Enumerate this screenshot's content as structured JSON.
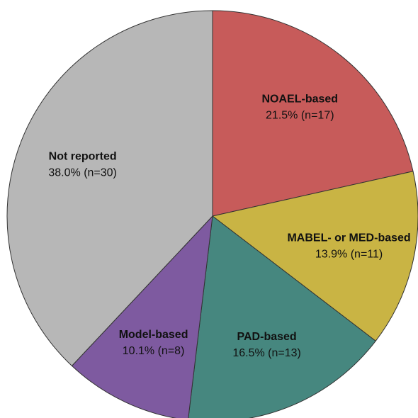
{
  "chart_data": {
    "type": "pie",
    "categories": [
      "NOAEL-based",
      "MABEL- or MED-based",
      "PAD-based",
      "Model-based",
      "Not reported"
    ],
    "values": [
      21.5,
      13.9,
      16.5,
      10.1,
      38.0
    ],
    "value_labels": [
      "21.5% (n=17)",
      "13.9% (n=11)",
      "16.5% (n=13)",
      "10.1% (n=8)",
      "38.0% (n=30)"
    ],
    "colors": [
      "#c75b5a",
      "#c9b444",
      "#46877f",
      "#7e5aa0",
      "#b7b7b7"
    ]
  }
}
